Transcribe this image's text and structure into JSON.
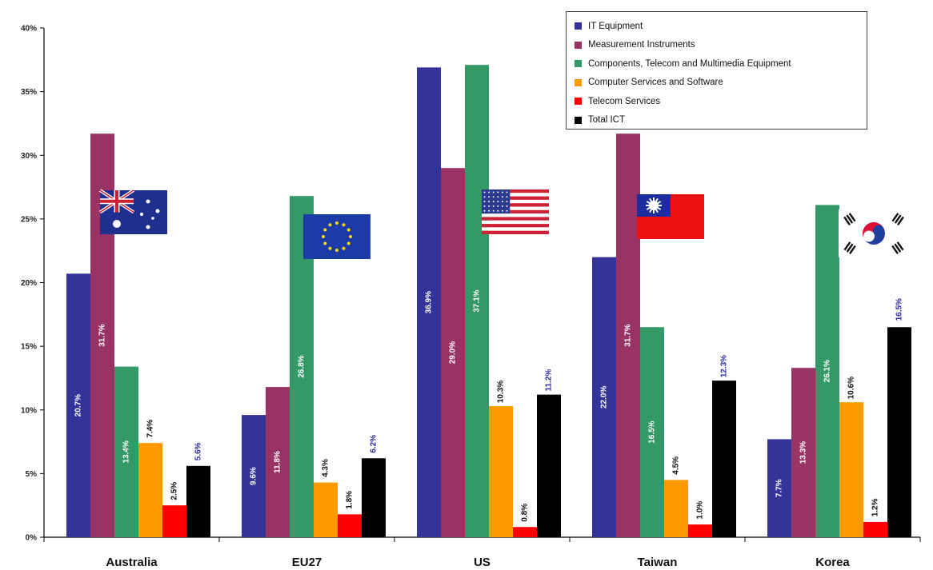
{
  "chart_data": {
    "type": "bar",
    "categories": [
      "Australia",
      "EU27",
      "US",
      "Taiwan",
      "Korea"
    ],
    "series": [
      {
        "name": "IT Equipment",
        "color": "#333399",
        "values": [
          20.7,
          9.6,
          36.9,
          22.0,
          7.7
        ]
      },
      {
        "name": "Measurement Instruments",
        "color": "#993366",
        "values": [
          31.7,
          11.8,
          29.0,
          31.7,
          13.3
        ]
      },
      {
        "name": "Components, Telecom and Multimedia Equipment",
        "color": "#339966",
        "values": [
          13.4,
          26.8,
          37.1,
          16.5,
          26.1
        ]
      },
      {
        "name": "Computer Services and Software",
        "color": "#FF9900",
        "values": [
          7.4,
          4.3,
          10.3,
          4.5,
          10.6
        ]
      },
      {
        "name": "Telecom Services",
        "color": "#FF0000",
        "values": [
          2.5,
          1.8,
          0.8,
          1.0,
          1.2
        ]
      },
      {
        "name": "Total ICT",
        "color": "#000000",
        "values": [
          5.6,
          6.2,
          11.2,
          12.3,
          16.5
        ]
      }
    ],
    "data_labels": [
      [
        "20.7%",
        "31.7%",
        "13.4%",
        "7.4%",
        "2.5%",
        "5.6%"
      ],
      [
        "9.6%",
        "11.8%",
        "26.8%",
        "4.3%",
        "1.8%",
        "6.2%"
      ],
      [
        "36.9%",
        "29.0%",
        "37.1%",
        "10.3%",
        "0.8%",
        "11.2%"
      ],
      [
        "22.0%",
        "31.7%",
        "16.5%",
        "4.5%",
        "1.0%",
        "12.3%"
      ],
      [
        "7.7%",
        "13.3%",
        "26.1%",
        "10.6%",
        "1.2%",
        "16.5%"
      ]
    ],
    "y_ticks": [
      "0%",
      "5%",
      "10%",
      "15%",
      "20%",
      "25%",
      "30%",
      "35%",
      "40%"
    ],
    "ylim": [
      0,
      40
    ],
    "grid": false,
    "legend_position": "top-right",
    "flags": [
      "australia-flag-icon",
      "eu-flag-icon",
      "us-flag-icon",
      "taiwan-flag-icon",
      "korea-flag-icon"
    ]
  }
}
